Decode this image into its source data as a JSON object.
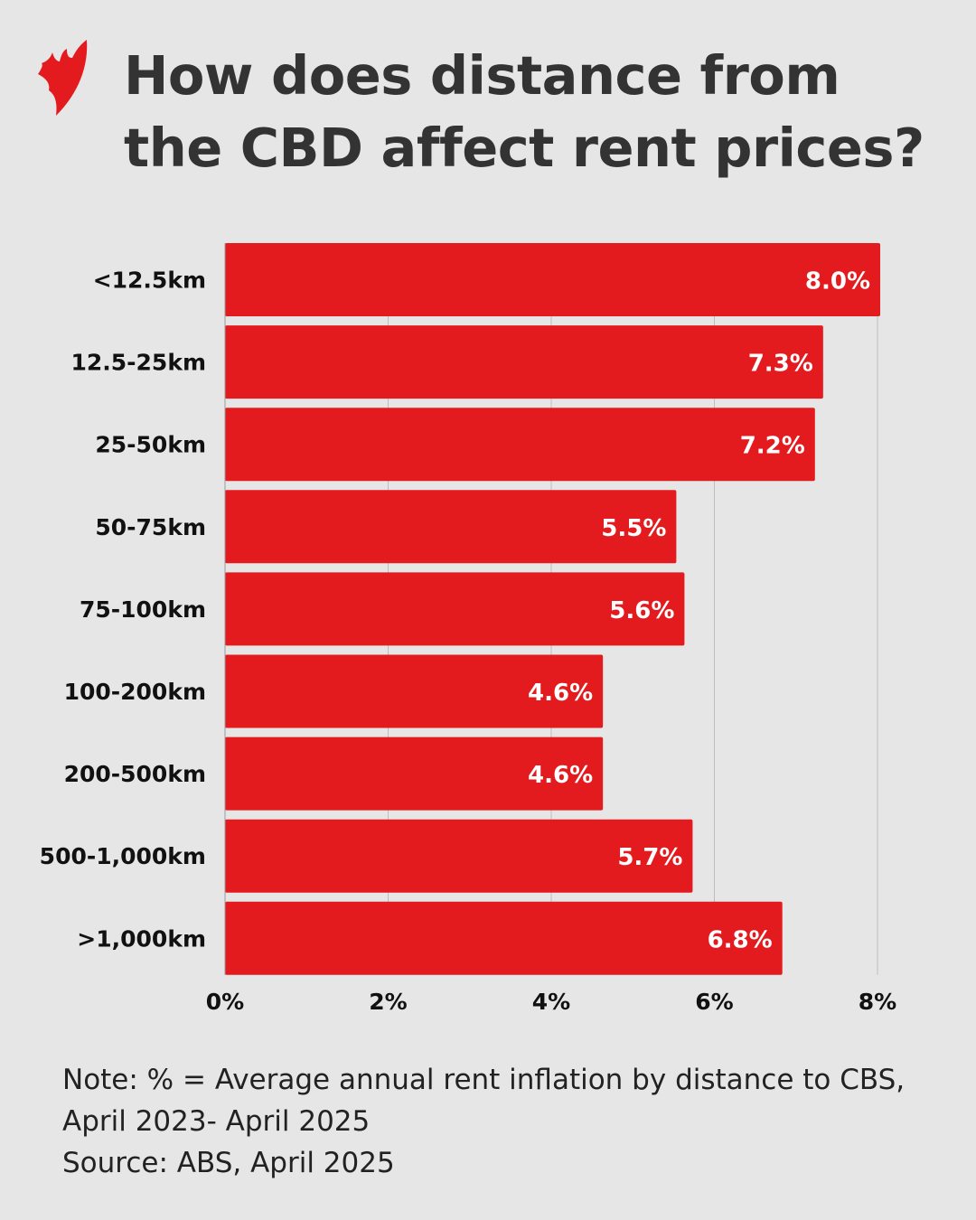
{
  "title": "How does distance from the CBD affect rent prices?",
  "logo": {
    "icon": "sbs-logo-icon",
    "color": "#e31b1f"
  },
  "chart_data": {
    "type": "bar",
    "orientation": "horizontal",
    "title": "How does distance from the CBD affect rent prices?",
    "categories": [
      "<12.5km",
      "12.5-25km",
      "25-50km",
      "50-75km",
      "75-100km",
      "100-200km",
      "200-500km",
      "500-1,000km",
      ">1,000km"
    ],
    "values": [
      8.0,
      7.3,
      7.2,
      5.5,
      5.6,
      4.6,
      4.6,
      5.7,
      6.8
    ],
    "data_labels": [
      "8.0%",
      "7.3%",
      "7.2%",
      "5.5%",
      "5.6%",
      "4.6%",
      "4.6%",
      "5.7%",
      "6.8%"
    ],
    "xlim": [
      0,
      8
    ],
    "x_ticks": [
      0,
      2,
      4,
      6,
      8
    ],
    "x_tick_labels": [
      "0%",
      "2%",
      "4%",
      "6%",
      "8%"
    ],
    "xlabel": "",
    "ylabel": "",
    "grid": true,
    "bar_color": "#e31b1f"
  },
  "notes": {
    "line1": "Note: % = Average annual rent inflation by distance to CBS,",
    "line2": "April 2023- April 2025",
    "source": "Source: ABS, April 2025"
  }
}
